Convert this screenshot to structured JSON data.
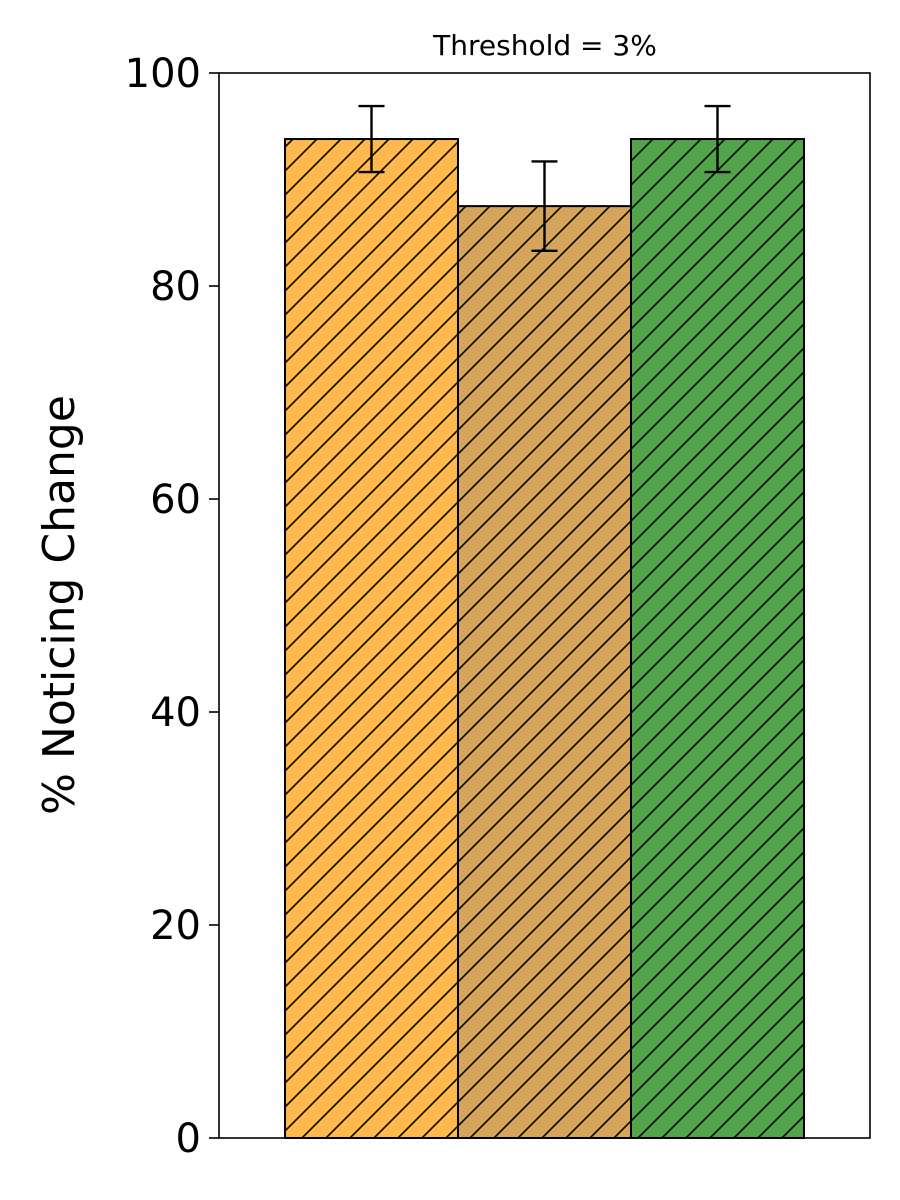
{
  "chart_data": {
    "type": "bar",
    "title": "Threshold = 3%",
    "ylabel": "% Noticing Change",
    "xlabel": "",
    "ylim": [
      0,
      100
    ],
    "yticks": [
      0,
      20,
      40,
      60,
      80,
      100
    ],
    "ytick_labels": [
      "0",
      "20",
      "40",
      "60",
      "80",
      "100"
    ],
    "grid": false,
    "hatch": "diagonal",
    "bars": [
      {
        "value": 93.8,
        "error": 3.1,
        "color": "#FFB84D"
      },
      {
        "value": 87.5,
        "error": 4.2,
        "color": "#D4A55A"
      },
      {
        "value": 93.8,
        "error": 3.1,
        "color": "#52A34A"
      }
    ]
  }
}
